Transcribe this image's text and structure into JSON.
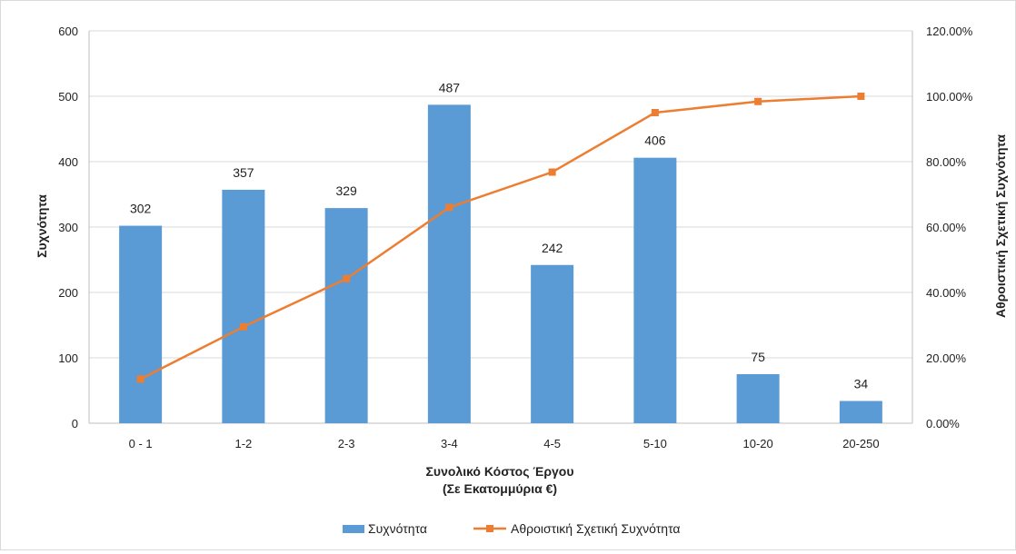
{
  "chart_data": {
    "type": "bar",
    "categories": [
      "0 - 1",
      "1-2",
      "2-3",
      "3-4",
      "4-5",
      "5-10",
      "10-20",
      "20-250"
    ],
    "series": [
      {
        "name": "Συχνότητα",
        "type": "bar",
        "axis": "left",
        "color": "#5b9bd5",
        "values": [
          302,
          357,
          329,
          487,
          242,
          406,
          75,
          34
        ]
      },
      {
        "name": "Αθροιστική Σχετική Συχνότητα",
        "type": "line",
        "axis": "right",
        "color": "#ed7d31",
        "values": [
          13.5,
          29.5,
          44.2,
          66.0,
          76.8,
          95.0,
          98.4,
          100.0
        ]
      }
    ],
    "xlabel_line1": "Συνολικό Κόστος Έργου",
    "xlabel_line2": "(Σε Εκατομμύρια €)",
    "ylabel": "Συχνότητα",
    "y2label": "Αθροιστική Σχετική Συχνότητα",
    "ylim": [
      0,
      600
    ],
    "yticks": [
      "0",
      "100",
      "200",
      "300",
      "400",
      "500",
      "600"
    ],
    "y2lim": [
      0,
      120
    ],
    "y2ticks": [
      "0.00%",
      "20.00%",
      "40.00%",
      "60.00%",
      "80.00%",
      "100.00%",
      "120.00%"
    ],
    "grid": true,
    "legend_position": "bottom"
  }
}
